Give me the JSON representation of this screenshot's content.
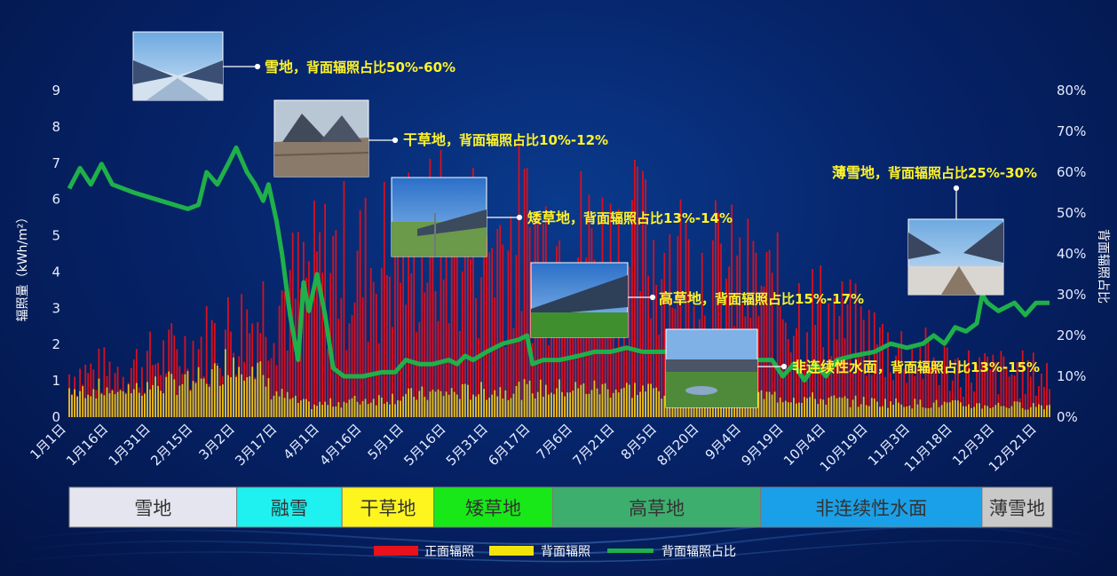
{
  "chart_data": {
    "type": "bar",
    "title": "",
    "ylabel_left": "辐照量（kWh/m²）",
    "ylabel_right": "背面辐照占比",
    "ylim_left": [
      0,
      9
    ],
    "ylim_right": [
      0,
      80
    ],
    "left_ticks": [
      "0",
      "1",
      "2",
      "3",
      "4",
      "5",
      "6",
      "7",
      "8",
      "9"
    ],
    "right_ticks": [
      "0%",
      "10%",
      "20%",
      "30%",
      "40%",
      "50%",
      "60%",
      "70%",
      "80%"
    ],
    "x_ticks": [
      "1月1日",
      "1月16日",
      "1月31日",
      "2月15日",
      "3月2日",
      "3月17日",
      "4月1日",
      "4月16日",
      "5月1日",
      "5月16日",
      "5月31日",
      "6月17日",
      "7月6日",
      "7月21日",
      "8月5日",
      "8月20日",
      "9月4日",
      "9月19日",
      "10月4日",
      "10月19日",
      "11月3日",
      "11月18日",
      "12月3日",
      "12月21日"
    ],
    "legend": [
      {
        "name": "正面辐照",
        "color": "#e8121c"
      },
      {
        "name": "背面辐照",
        "color": "#f2e40a"
      },
      {
        "name": "背面辐照占比",
        "color": "#1fb04a"
      }
    ],
    "front_series_envelope": [
      [
        1,
        1.9
      ],
      [
        15,
        2.0
      ],
      [
        30,
        2.4
      ],
      [
        46,
        3.0
      ],
      [
        61,
        3.8
      ],
      [
        70,
        4.3
      ],
      [
        76,
        5.2
      ],
      [
        85,
        5.5
      ],
      [
        91,
        6.0
      ],
      [
        100,
        6.8
      ],
      [
        110,
        6.5
      ],
      [
        121,
        7.2
      ],
      [
        136,
        7.6
      ],
      [
        151,
        7.5
      ],
      [
        168,
        7.8
      ],
      [
        180,
        7.6
      ],
      [
        190,
        7.4
      ],
      [
        202,
        7.2
      ],
      [
        214,
        7.3
      ],
      [
        225,
        7.0
      ],
      [
        233,
        6.5
      ],
      [
        247,
        6.0
      ],
      [
        262,
        5.2
      ],
      [
        278,
        4.6
      ],
      [
        292,
        3.8
      ],
      [
        307,
        3.0
      ],
      [
        322,
        2.4
      ],
      [
        337,
        2.0
      ],
      [
        352,
        1.9
      ],
      [
        365,
        1.8
      ]
    ],
    "rear_series_envelope": [
      [
        1,
        1.05
      ],
      [
        20,
        1.1
      ],
      [
        40,
        1.3
      ],
      [
        55,
        1.6
      ],
      [
        61,
        2.3
      ],
      [
        68,
        2.2
      ],
      [
        76,
        1.0
      ],
      [
        85,
        0.6
      ],
      [
        91,
        0.45
      ],
      [
        110,
        0.65
      ],
      [
        136,
        0.9
      ],
      [
        168,
        1.05
      ],
      [
        202,
        1.1
      ],
      [
        225,
        1.0
      ],
      [
        262,
        0.8
      ],
      [
        292,
        0.6
      ],
      [
        322,
        0.5
      ],
      [
        340,
        0.45
      ],
      [
        365,
        0.45
      ]
    ],
    "rear_ratio_points": [
      [
        1,
        56
      ],
      [
        5,
        61
      ],
      [
        9,
        57
      ],
      [
        13,
        62
      ],
      [
        17,
        57
      ],
      [
        25,
        55
      ],
      [
        35,
        53
      ],
      [
        45,
        51
      ],
      [
        49,
        52
      ],
      [
        52,
        60
      ],
      [
        56,
        57
      ],
      [
        60,
        62
      ],
      [
        63,
        66
      ],
      [
        67,
        60
      ],
      [
        70,
        57
      ],
      [
        73,
        53
      ],
      [
        75,
        57
      ],
      [
        78,
        48
      ],
      [
        80,
        40
      ],
      [
        83,
        25
      ],
      [
        86,
        14
      ],
      [
        88,
        33
      ],
      [
        90,
        26
      ],
      [
        93,
        35
      ],
      [
        96,
        25
      ],
      [
        99,
        12
      ],
      [
        103,
        10
      ],
      [
        110,
        10
      ],
      [
        117,
        11
      ],
      [
        122,
        11
      ],
      [
        126,
        14
      ],
      [
        131,
        13
      ],
      [
        136,
        13
      ],
      [
        142,
        14
      ],
      [
        145,
        13
      ],
      [
        148,
        15
      ],
      [
        151,
        14
      ],
      [
        156,
        16
      ],
      [
        162,
        18
      ],
      [
        168,
        19
      ],
      [
        171,
        20
      ],
      [
        173,
        13
      ],
      [
        177,
        14
      ],
      [
        183,
        14
      ],
      [
        190,
        15
      ],
      [
        196,
        16
      ],
      [
        202,
        16
      ],
      [
        208,
        17
      ],
      [
        214,
        16
      ],
      [
        220,
        16
      ],
      [
        226,
        16
      ],
      [
        232,
        15
      ],
      [
        240,
        15
      ],
      [
        248,
        15
      ],
      [
        256,
        14
      ],
      [
        262,
        14
      ],
      [
        266,
        10
      ],
      [
        270,
        13
      ],
      [
        274,
        9
      ],
      [
        278,
        13
      ],
      [
        282,
        10
      ],
      [
        286,
        14
      ],
      [
        292,
        15
      ],
      [
        300,
        16
      ],
      [
        306,
        18
      ],
      [
        312,
        17
      ],
      [
        318,
        18
      ],
      [
        322,
        20
      ],
      [
        326,
        18
      ],
      [
        330,
        22
      ],
      [
        334,
        21
      ],
      [
        338,
        23
      ],
      [
        340,
        30
      ],
      [
        342,
        28
      ],
      [
        346,
        26
      ],
      [
        352,
        28
      ],
      [
        356,
        25
      ],
      [
        360,
        28
      ],
      [
        365,
        28
      ]
    ],
    "regions": [
      {
        "label": "雪地",
        "start": 1,
        "end": 63,
        "color": "#e4e5ee"
      },
      {
        "label": "融雪",
        "start": 63,
        "end": 102,
        "color": "#1ff0f0"
      },
      {
        "label": "干草地",
        "start": 102,
        "end": 136,
        "color": "#fff51e"
      },
      {
        "label": "矮草地",
        "start": 136,
        "end": 180,
        "color": "#18e818"
      },
      {
        "label": "高草地",
        "start": 180,
        "end": 257,
        "color": "#3dae6e"
      },
      {
        "label": "非连续性水面",
        "start": 257,
        "end": 339,
        "color": "#1aa0e8"
      },
      {
        "label": "薄雪地",
        "start": 339,
        "end": 365,
        "color": "#c9c9c9"
      }
    ],
    "annotations": [
      {
        "key": "雪地",
        "rest": "，背面辐照占比50%-60%"
      },
      {
        "key": "干草地",
        "rest": "，背面辐照占比10%-12%"
      },
      {
        "key": "矮草地",
        "rest": "，背面辐照占比13%-14%"
      },
      {
        "key": "高草地",
        "rest": "，背面辐照占比15%-17%"
      },
      {
        "key": "非连续性水面",
        "rest": "，背面辐照占比13%-15%"
      },
      {
        "key": "薄雪地",
        "rest": "，背面辐照占比25%-30%"
      }
    ],
    "photo_scenes": [
      "snow-field",
      "dry-grass",
      "short-grass",
      "tall-grass",
      "water-patches",
      "thin-snow"
    ]
  }
}
